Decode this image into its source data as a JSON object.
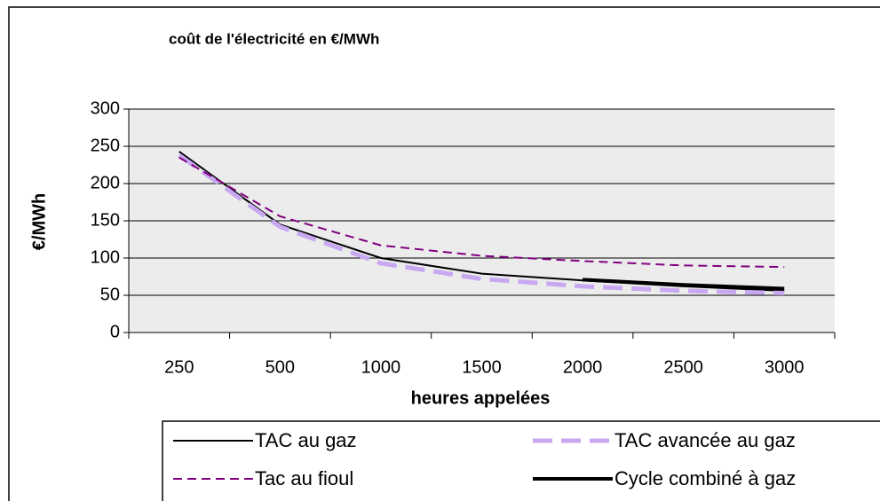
{
  "chart_data": {
    "type": "line",
    "title": "coût de l'électricité en €/MWh",
    "ylabel": "€/MWh",
    "xlabel": "heures appelées",
    "categories": [
      250,
      500,
      1000,
      1500,
      2000,
      2500,
      3000
    ],
    "ylim": [
      0,
      300
    ],
    "yticks": [
      0,
      50,
      100,
      150,
      200,
      250,
      300
    ],
    "grid": true,
    "legend": "bottom",
    "series": [
      {
        "name": "TAC au gaz",
        "color": "#000000",
        "style": "solid",
        "values": [
          243,
          145,
          100,
          79,
          70,
          62,
          56
        ]
      },
      {
        "name": "TAC avancée au gaz",
        "color": "#c8a8f0",
        "style": "longdash",
        "values": [
          238,
          142,
          93,
          72,
          62,
          56,
          53
        ]
      },
      {
        "name": "Tac au fioul",
        "color": "#800080",
        "style": "dash",
        "values": [
          235,
          156,
          117,
          103,
          96,
          90,
          88
        ]
      },
      {
        "name": "Cycle combiné à gaz",
        "color": "#000000",
        "style": "thick",
        "values": [
          null,
          null,
          null,
          null,
          71,
          64,
          59
        ]
      }
    ]
  }
}
